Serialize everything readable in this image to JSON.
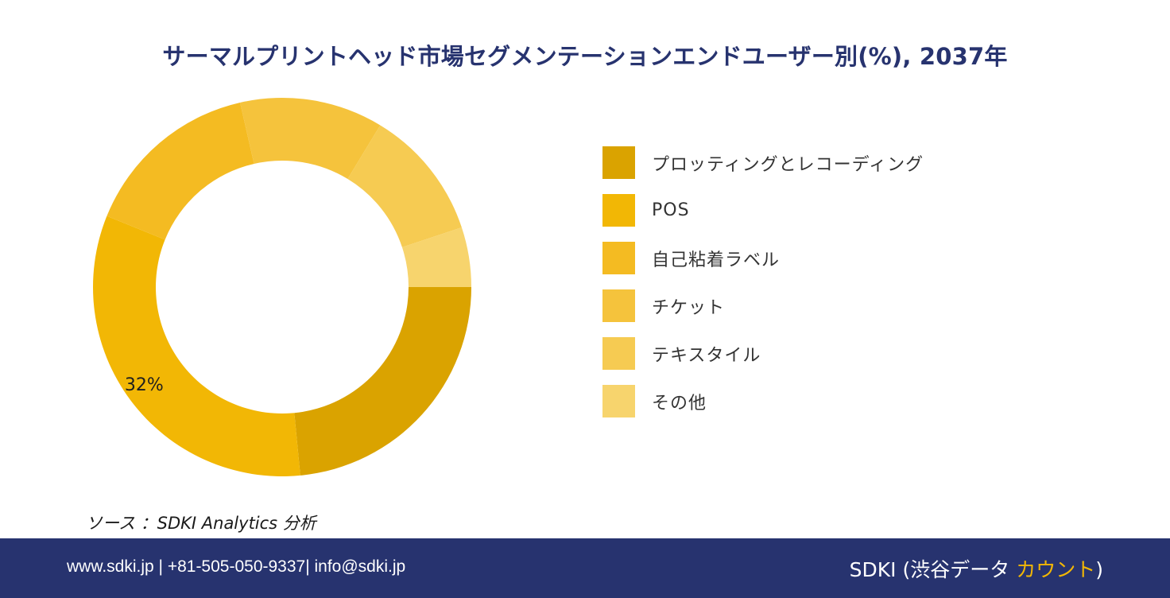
{
  "title": "サーマルプリントヘッド市場セグメンテーションエンドユーザー別(%), 2037年",
  "chart_data": {
    "type": "pie",
    "variant": "donut",
    "series": [
      {
        "label": "プロッティングとレコーディング",
        "value": 23,
        "color": "#daa300"
      },
      {
        "label": "POS",
        "value": 32,
        "color": "#f2b705"
      },
      {
        "label": "自己粘着ラベル",
        "value": 15,
        "color": "#f4bb22"
      },
      {
        "label": "チケット",
        "value": 12,
        "color": "#f5c33c"
      },
      {
        "label": "テキスタイル",
        "value": 11,
        "color": "#f6cb52"
      },
      {
        "label": "その他",
        "value": 5,
        "color": "#f7d46d"
      }
    ],
    "data_labels": [
      {
        "series_index": 1,
        "text": "32%"
      }
    ],
    "start_angle_deg": 90,
    "direction": "clockwise",
    "legend_position": "right"
  },
  "source": "ソース ：SDKI Analytics 分析",
  "footer": {
    "contact": "www.sdki.jp | +81-505-050-9337| info@sdki.jp",
    "brand_prefix": "SDKI (渋谷データ ",
    "brand_accent": "カウント",
    "brand_suffix": ")",
    "accent_color": "#f2b705",
    "background": "#27336f"
  }
}
